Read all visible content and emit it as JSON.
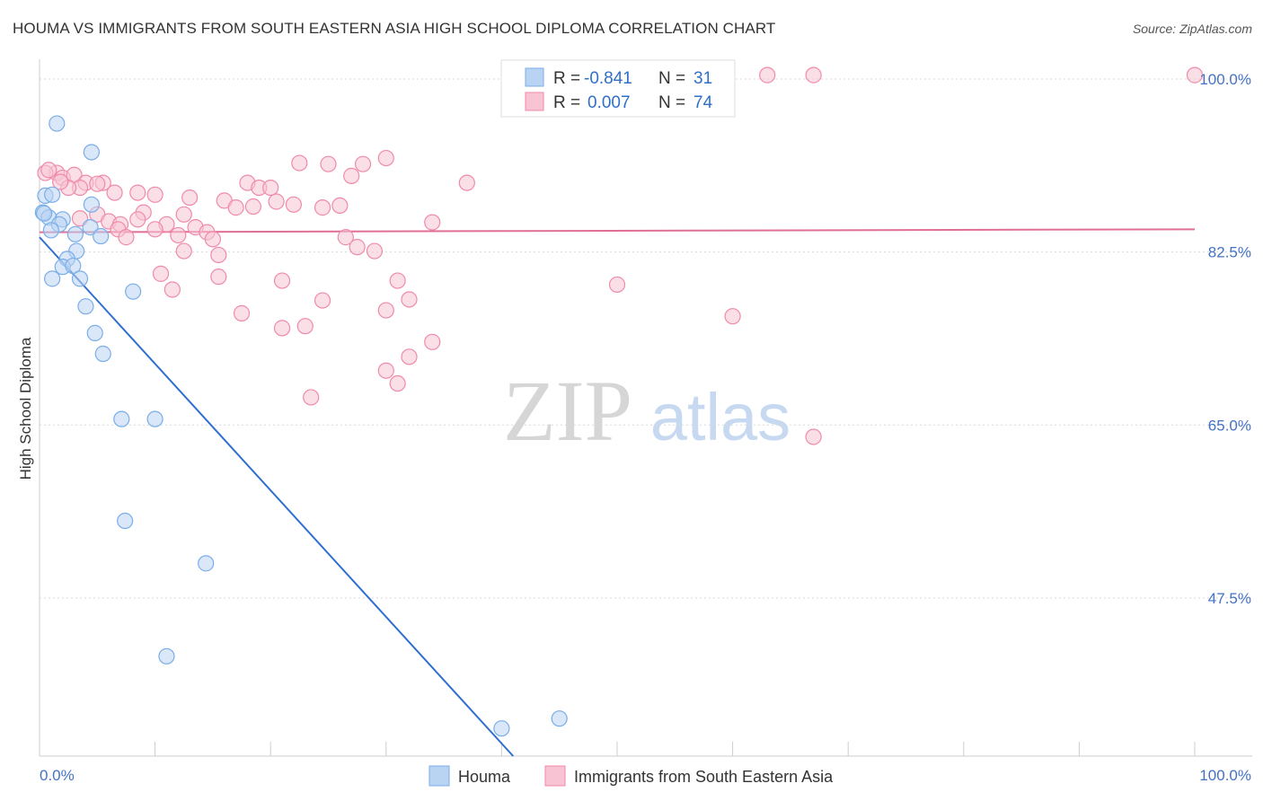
{
  "chart_data": {
    "type": "scatter",
    "title": "HOUMA VS IMMIGRANTS FROM SOUTH EASTERN ASIA HIGH SCHOOL DIPLOMA CORRELATION CHART",
    "source": "Source: ZipAtlas.com",
    "ylabel": "High School Diploma",
    "xlim": [
      0,
      100
    ],
    "ylim": [
      31.5,
      102
    ],
    "x_tick_labels": [
      "0.0%",
      "100.0%"
    ],
    "y_ticks": [
      {
        "value": 100.0,
        "label": "100.0%"
      },
      {
        "value": 82.5,
        "label": "82.5%"
      },
      {
        "value": 65.0,
        "label": "65.0%"
      },
      {
        "value": 47.5,
        "label": "47.5%"
      }
    ],
    "watermark": {
      "zip": "ZIP",
      "atlas": "atlas"
    },
    "legend": {
      "r_label": "R =",
      "n_label": "N =",
      "entries": [
        {
          "r": "-0.841",
          "n": "31"
        },
        {
          "r": "0.007",
          "n": "74"
        }
      ]
    },
    "series": [
      {
        "name": "Houma",
        "color": "#7aaee8",
        "fill": "#b9d3f3",
        "line_color": "#2f6fd0",
        "trend": {
          "x": [
            0,
            41
          ],
          "y": [
            84.0,
            31.5
          ]
        },
        "points": [
          [
            1.5,
            95.5
          ],
          [
            0.5,
            88.2
          ],
          [
            0.3,
            86.5
          ],
          [
            0.8,
            86.0
          ],
          [
            2.0,
            85.8
          ],
          [
            1.7,
            85.3
          ],
          [
            4.5,
            87.3
          ],
          [
            4.4,
            85.0
          ],
          [
            1.0,
            84.7
          ],
          [
            3.1,
            84.3
          ],
          [
            5.3,
            84.1
          ],
          [
            3.2,
            82.6
          ],
          [
            2.4,
            81.8
          ],
          [
            2.0,
            81.0
          ],
          [
            2.9,
            81.1
          ],
          [
            1.1,
            79.8
          ],
          [
            3.5,
            79.8
          ],
          [
            8.1,
            78.5
          ],
          [
            4.0,
            77.0
          ],
          [
            4.8,
            74.3
          ],
          [
            5.5,
            72.2
          ],
          [
            7.1,
            65.6
          ],
          [
            10.0,
            65.6
          ],
          [
            7.4,
            55.3
          ],
          [
            14.4,
            51.0
          ],
          [
            11.0,
            41.6
          ],
          [
            40.0,
            34.3
          ],
          [
            45.0,
            35.3
          ],
          [
            4.5,
            92.6
          ],
          [
            1.1,
            88.3
          ],
          [
            0.4,
            86.4
          ]
        ]
      },
      {
        "name": "Immigrants from South Eastern Asia",
        "color": "#f08aaa",
        "fill": "#f8c4d4",
        "line_color": "#e06f97",
        "trend": {
          "x": [
            0,
            100
          ],
          "y": [
            84.5,
            84.8
          ]
        },
        "points": [
          [
            63.0,
            100.4
          ],
          [
            67.0,
            100.4
          ],
          [
            100.0,
            100.4
          ],
          [
            30.0,
            92.0
          ],
          [
            22.5,
            91.5
          ],
          [
            25.0,
            91.4
          ],
          [
            28.0,
            91.4
          ],
          [
            1.5,
            90.5
          ],
          [
            2.0,
            90.0
          ],
          [
            0.5,
            90.5
          ],
          [
            3.0,
            90.3
          ],
          [
            27.0,
            90.2
          ],
          [
            5.5,
            89.5
          ],
          [
            4.0,
            89.5
          ],
          [
            18.0,
            89.5
          ],
          [
            19.0,
            89.0
          ],
          [
            37.0,
            89.5
          ],
          [
            20.0,
            89.0
          ],
          [
            3.5,
            89.0
          ],
          [
            2.5,
            89.0
          ],
          [
            1.8,
            89.6
          ],
          [
            6.5,
            88.5
          ],
          [
            8.5,
            88.5
          ],
          [
            10.0,
            88.3
          ],
          [
            13.0,
            88.0
          ],
          [
            16.0,
            87.7
          ],
          [
            20.5,
            87.6
          ],
          [
            22.0,
            87.3
          ],
          [
            26.0,
            87.2
          ],
          [
            24.5,
            87.0
          ],
          [
            18.5,
            87.1
          ],
          [
            17.0,
            87.0
          ],
          [
            12.5,
            86.3
          ],
          [
            9.0,
            86.5
          ],
          [
            5.0,
            86.3
          ],
          [
            8.5,
            85.8
          ],
          [
            6.0,
            85.6
          ],
          [
            3.5,
            85.9
          ],
          [
            7.0,
            85.3
          ],
          [
            11.0,
            85.3
          ],
          [
            13.5,
            85.0
          ],
          [
            6.8,
            84.8
          ],
          [
            10.0,
            84.8
          ],
          [
            14.5,
            84.5
          ],
          [
            12.0,
            84.2
          ],
          [
            7.5,
            84.0
          ],
          [
            15.0,
            83.8
          ],
          [
            26.5,
            84.0
          ],
          [
            34.0,
            85.5
          ],
          [
            27.5,
            83.0
          ],
          [
            29.0,
            82.6
          ],
          [
            12.5,
            82.6
          ],
          [
            15.5,
            82.2
          ],
          [
            10.5,
            80.3
          ],
          [
            15.5,
            80.0
          ],
          [
            21.0,
            79.6
          ],
          [
            31.0,
            79.6
          ],
          [
            50.0,
            79.2
          ],
          [
            11.5,
            78.7
          ],
          [
            24.5,
            77.6
          ],
          [
            32.0,
            77.7
          ],
          [
            30.0,
            76.6
          ],
          [
            17.5,
            76.3
          ],
          [
            60.0,
            76.0
          ],
          [
            23.0,
            75.0
          ],
          [
            21.0,
            74.8
          ],
          [
            34.0,
            73.4
          ],
          [
            32.0,
            71.9
          ],
          [
            30.0,
            70.5
          ],
          [
            31.0,
            69.2
          ],
          [
            23.5,
            67.8
          ],
          [
            67.0,
            63.8
          ],
          [
            0.8,
            90.8
          ],
          [
            5.0,
            89.4
          ]
        ]
      }
    ],
    "bottom_legend": [
      "Houma",
      "Immigrants from South Eastern Asia"
    ]
  }
}
